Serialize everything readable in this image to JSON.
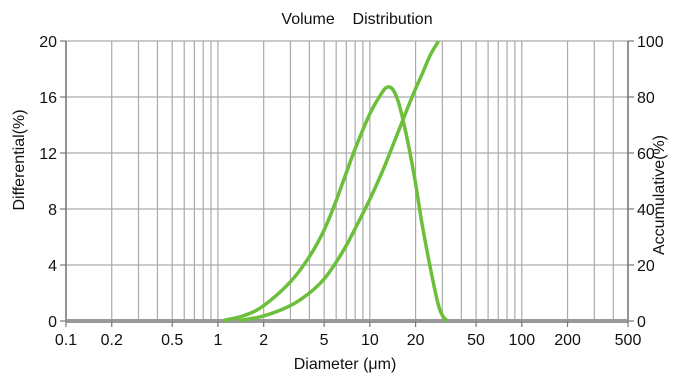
{
  "chart_data": {
    "type": "line",
    "title": "Volume    Distribution",
    "xlabel": "Diameter (μm)",
    "ylabel_left": "Differential(%)",
    "ylabel_right": "Accumulative(%)",
    "x_scale": "log",
    "xlim": [
      0.1,
      500
    ],
    "ylim_left": [
      0,
      20
    ],
    "ylim_right": [
      0,
      100
    ],
    "x_ticks": [
      0.1,
      0.2,
      0.5,
      1,
      2,
      5,
      10,
      20,
      50,
      100,
      200,
      500
    ],
    "x_tick_labels": [
      "0.1",
      "0.2",
      "0.5",
      "1",
      "2",
      "5",
      "10",
      "20",
      "50",
      "100",
      "200",
      "500"
    ],
    "y_left_ticks": [
      0,
      4,
      8,
      12,
      16,
      20
    ],
    "y_left_tick_labels": [
      "0",
      "4",
      "8",
      "12",
      "16",
      "20"
    ],
    "y_right_ticks": [
      0,
      20,
      40,
      60,
      80,
      100
    ],
    "y_right_tick_labels": [
      "0",
      "20",
      "40",
      "60",
      "80",
      "100"
    ],
    "grid": true,
    "colors": {
      "series": "#6cbf3a",
      "grid": "#aaaaaa",
      "axis": "#777777",
      "baseline": "#999999"
    },
    "series": [
      {
        "axis": "left",
        "x": [
          1.1,
          1.5,
          2,
          3,
          4,
          5,
          6,
          7,
          8,
          10,
          12,
          13,
          14,
          15,
          16,
          18,
          20,
          22,
          25,
          28,
          30,
          32
        ],
        "y": [
          0.05,
          0.4,
          1.1,
          2.8,
          4.6,
          6.5,
          8.6,
          10.6,
          12.3,
          14.8,
          16.3,
          16.7,
          16.6,
          16.0,
          15.0,
          12.5,
          9.8,
          7.0,
          3.8,
          1.3,
          0.4,
          0.05
        ]
      },
      {
        "axis": "right",
        "x": [
          1.4,
          2,
          3,
          4,
          5,
          6,
          7,
          8,
          10,
          12,
          14,
          16,
          18,
          20,
          22,
          25,
          28
        ],
        "y": [
          0.2,
          1.8,
          5.5,
          10,
          15,
          21,
          27,
          33,
          43.5,
          53,
          62,
          70,
          77,
          83,
          88,
          95,
          99.5
        ]
      }
    ]
  }
}
